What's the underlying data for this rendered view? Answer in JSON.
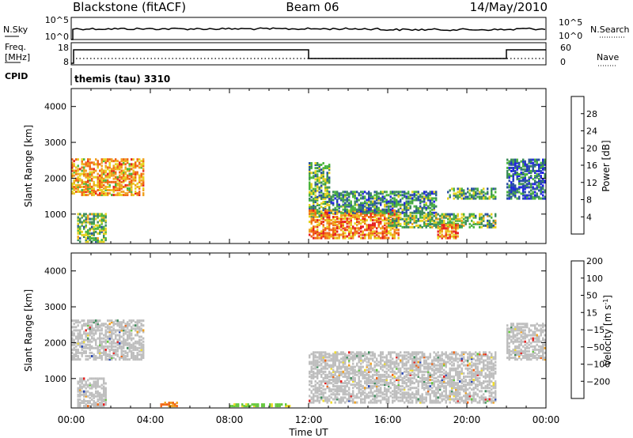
{
  "header": {
    "station": "Blackstone (fitACF)",
    "beam": "Beam 06",
    "date": "14/May/2010"
  },
  "sky_panel": {
    "left_label": "N.Sky",
    "right_label": "N.Search",
    "tick_top": "10^5",
    "tick_bottom": "10^0"
  },
  "freq_panel": {
    "left_label_1": "Freq.",
    "left_label_2": "[MHz]",
    "right_label": "Nave",
    "ticks_left": [
      "18",
      "8"
    ],
    "ticks_right": [
      "60",
      "0"
    ]
  },
  "cpid": {
    "label": "CPID",
    "text": "themis (tau) 3310"
  },
  "colors": {
    "power": [
      "#1e1ee6",
      "#2850a0",
      "#3c8c5a",
      "#4ab43c",
      "#e6d21e",
      "#f0a01e",
      "#f06414",
      "#e61e1e"
    ],
    "velocity": [
      "#e61e1e",
      "#f06414",
      "#f0a01e",
      "#f0dc28",
      "#c8c8c8",
      "#64c83c",
      "#3c8c5a",
      "#2846b4"
    ],
    "ground": "#bebebe"
  },
  "chart_data": [
    {
      "type": "heatmap",
      "name": "power",
      "ylabel": "Slant Range [km]",
      "xlim": [
        0,
        24
      ],
      "ylim": [
        180,
        4500
      ],
      "yticks": [
        "1000",
        "2000",
        "3000",
        "4000"
      ],
      "colorbar": {
        "label": "Power [dB]",
        "ticks": [
          "4",
          "8",
          "12",
          "16",
          "20",
          "24",
          "28"
        ],
        "range": [
          0,
          32
        ]
      },
      "regions": [
        {
          "t0": 0.0,
          "t1": 3.7,
          "r0": 1500,
          "r1": 2500,
          "level": 22
        },
        {
          "t0": 0.3,
          "t1": 1.8,
          "r0": 200,
          "r1": 1000,
          "level": 14
        },
        {
          "t0": 12.0,
          "t1": 13.0,
          "r0": 900,
          "r1": 2400,
          "level": 12
        },
        {
          "t0": 12.0,
          "t1": 16.5,
          "r0": 300,
          "r1": 1100,
          "level": 24
        },
        {
          "t0": 13.0,
          "t1": 18.5,
          "r0": 1000,
          "r1": 1600,
          "level": 10
        },
        {
          "t0": 16.0,
          "t1": 21.5,
          "r0": 600,
          "r1": 1000,
          "level": 14
        },
        {
          "t0": 18.5,
          "t1": 19.6,
          "r0": 300,
          "r1": 700,
          "level": 24
        },
        {
          "t0": 19.0,
          "t1": 21.5,
          "r0": 1400,
          "r1": 1700,
          "level": 12
        },
        {
          "t0": 22.0,
          "t1": 24.0,
          "r0": 1400,
          "r1": 2500,
          "level": 8
        }
      ]
    },
    {
      "type": "heatmap",
      "name": "velocity",
      "xlabel": "Time UT",
      "ylabel": "Slant Range [km]",
      "xlim": [
        0,
        24
      ],
      "ylim": [
        180,
        4500
      ],
      "yticks": [
        "1000",
        "2000",
        "3000",
        "4000"
      ],
      "xticks": [
        "00:00",
        "04:00",
        "08:00",
        "12:00",
        "16:00",
        "20:00",
        "00:00"
      ],
      "colorbar": {
        "label": "Velocity [m s^-1]",
        "ticks": [
          "-200",
          "-100",
          "-50",
          "-15",
          "15",
          "50",
          "100",
          "200"
        ]
      },
      "regions": [
        {
          "t0": 0.0,
          "t1": 3.7,
          "r0": 1500,
          "r1": 2600,
          "level": 0
        },
        {
          "t0": 0.3,
          "t1": 1.8,
          "r0": 200,
          "r1": 1000,
          "level": 0
        },
        {
          "t0": 12.0,
          "t1": 21.5,
          "r0": 300,
          "r1": 1700,
          "level": 0
        },
        {
          "t0": 22.0,
          "t1": 24.0,
          "r0": 1500,
          "r1": 2500,
          "level": 0
        },
        {
          "t0": 4.5,
          "t1": 5.3,
          "r0": 200,
          "r1": 300,
          "level": -60
        },
        {
          "t0": 8.0,
          "t1": 11.0,
          "r0": 200,
          "r1": 260,
          "level": 30
        }
      ]
    }
  ]
}
